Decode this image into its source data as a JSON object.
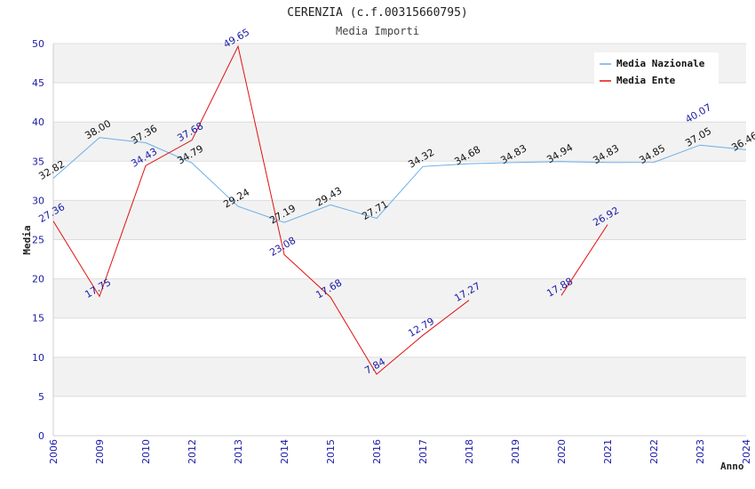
{
  "chart_data": {
    "type": "line",
    "title": "CERENZIA (c.f.00315660795)",
    "subtitle": "Media Importi",
    "ylabel": "Media",
    "xlabel": "Anno",
    "ylim": [
      0,
      50
    ],
    "yticks": [
      0,
      5,
      10,
      15,
      20,
      25,
      30,
      35,
      40,
      45,
      50
    ],
    "categories": [
      "2006",
      "2009",
      "2010",
      "2012",
      "2013",
      "2014",
      "2015",
      "2016",
      "2017",
      "2018",
      "2019",
      "2020",
      "2021",
      "2022",
      "2023",
      "2024"
    ],
    "legend_position": "top-right",
    "series": [
      {
        "name": "Media Nazionale",
        "color": "#6aaee8",
        "values": [
          32.82,
          38.0,
          37.36,
          34.79,
          29.24,
          27.19,
          29.43,
          27.71,
          34.32,
          34.68,
          34.83,
          34.94,
          34.83,
          34.85,
          37.05,
          36.46
        ]
      },
      {
        "name": "Media Ente",
        "color": "#e01010",
        "values": [
          27.36,
          17.75,
          34.43,
          37.68,
          49.65,
          23.08,
          17.68,
          7.84,
          12.79,
          17.27,
          null,
          17.88,
          26.92,
          null,
          40.07,
          null
        ]
      }
    ]
  }
}
